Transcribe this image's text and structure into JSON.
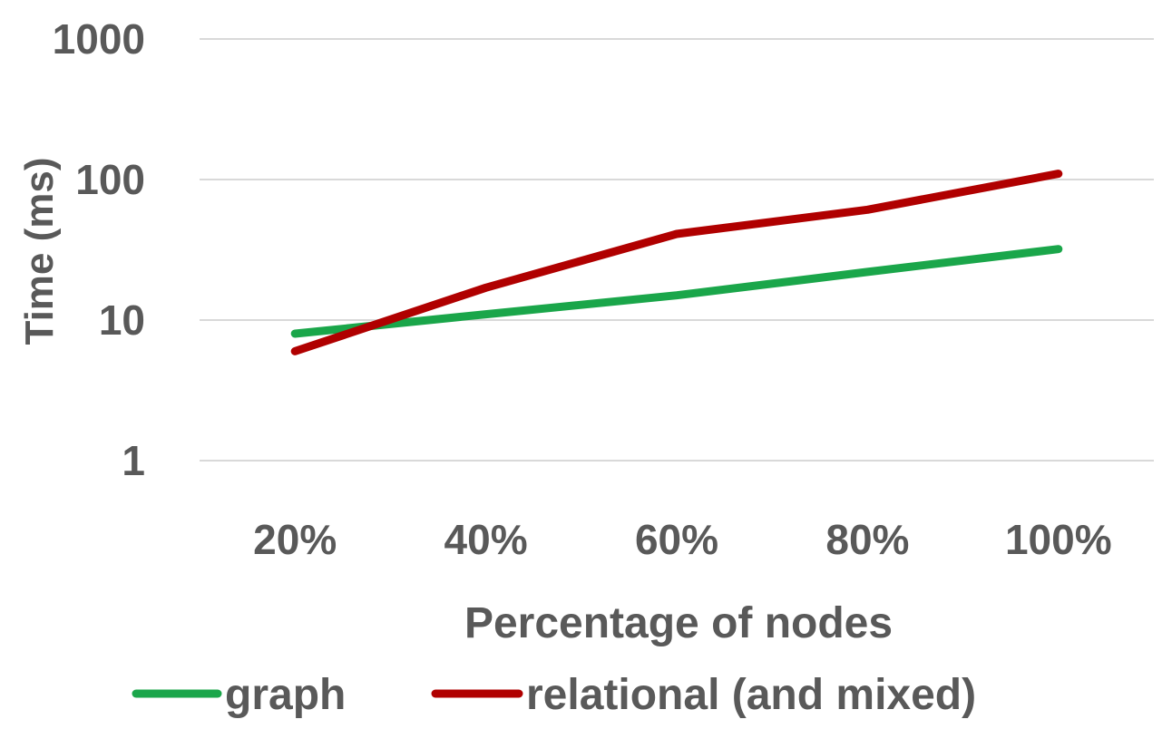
{
  "chart_data": {
    "type": "line",
    "title": "",
    "xlabel": "Percentage of nodes",
    "ylabel": "Time (ms)",
    "categories": [
      "20%",
      "40%",
      "60%",
      "80%",
      "100%"
    ],
    "yscale": "log",
    "ylim": [
      1,
      1000
    ],
    "yticks": [
      {
        "value": 1,
        "label": "1"
      },
      {
        "value": 10,
        "label": "10"
      },
      {
        "value": 100,
        "label": "100"
      },
      {
        "value": 1000,
        "label": "1000"
      }
    ],
    "grid": true,
    "legend": "bottom",
    "series": [
      {
        "name": "graph",
        "color": "#1aa64a",
        "values": [
          8,
          11,
          15,
          22,
          32
        ]
      },
      {
        "name": "relational (and mixed)",
        "color": "#b00000",
        "values": [
          6,
          17,
          41,
          61,
          110
        ]
      }
    ]
  }
}
